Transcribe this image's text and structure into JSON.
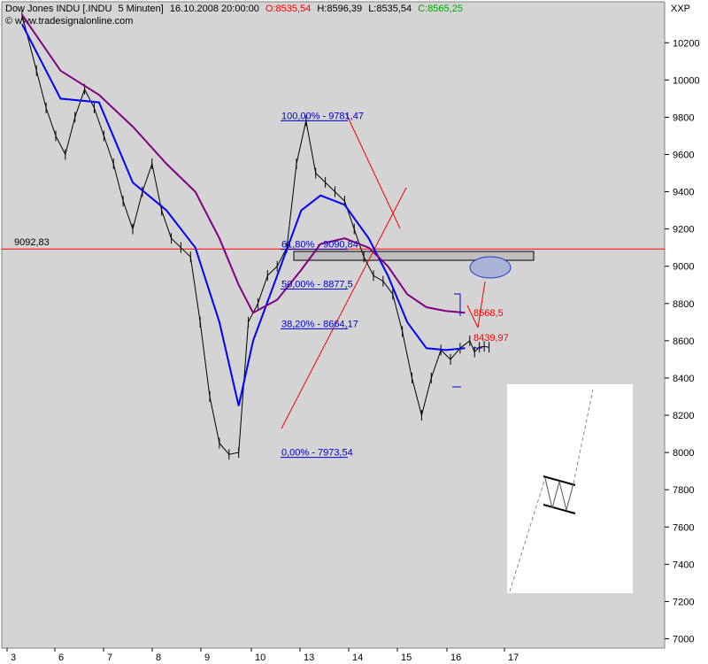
{
  "header": {
    "symbol": "Dow Jones INDU [.INDU",
    "interval": "5 Minuten]",
    "datetime": "16.10.2008 20:00:00",
    "open": "O:8535,54",
    "high": "H:8596,39",
    "low": "L:8535,54",
    "close": "C:8565,25",
    "website": "© www.tradesignalonline.com",
    "instrument_code": "XXP"
  },
  "colors": {
    "plot_bg": "#d4d4d4",
    "price": "#000000",
    "ma_fast": "#0000ff",
    "ma_slow": "#800080",
    "open_color": "#ff0000",
    "close_color": "#00aa00",
    "fib_text": "#0000cc",
    "red_line": "#ff0000"
  },
  "chart_data": {
    "type": "line",
    "title": "Dow Jones INDU [.INDU 5 Minuten] 16.10.2008 20:00:00",
    "ylim": [
      6950,
      10420
    ],
    "y_ticks": [
      7000,
      7200,
      7400,
      7600,
      7800,
      8000,
      8200,
      8400,
      8600,
      8800,
      9000,
      9200,
      9400,
      9600,
      9800,
      10000,
      10200
    ],
    "x_tick_labels": [
      "3",
      "6",
      "7",
      "8",
      "9",
      "10",
      "13",
      "14",
      "15",
      "16",
      "17"
    ],
    "grid": false,
    "series": [
      {
        "role": "price",
        "x": [
          0.2,
          0.5,
          0.7,
          0.9,
          1.1,
          1.3,
          1.5,
          1.7,
          1.9,
          2.1,
          2.3,
          2.5,
          2.7,
          2.9,
          3.1,
          3.3,
          3.5,
          3.7,
          3.9,
          4.1,
          4.3,
          4.5,
          4.7,
          4.9,
          5.1,
          5.3,
          5.5,
          5.7,
          5.9,
          6.1,
          6.3,
          6.5,
          6.7,
          6.9,
          7.1,
          7.3,
          7.5,
          7.7,
          7.9,
          8.1,
          8.3,
          8.5,
          8.7,
          8.9,
          9.1,
          9.3,
          9.5,
          9.6,
          9.7,
          9.8,
          9.9
        ],
        "values": [
          10350,
          10050,
          9850,
          9700,
          9600,
          9800,
          9950,
          9850,
          9700,
          9550,
          9350,
          9200,
          9400,
          9550,
          9300,
          9150,
          9100,
          9050,
          8700,
          8300,
          8050,
          7990,
          8000,
          8700,
          8800,
          8950,
          9000,
          9100,
          9550,
          9781,
          9500,
          9450,
          9400,
          9350,
          9200,
          9050,
          8950,
          8920,
          8850,
          8650,
          8400,
          8200,
          8400,
          8550,
          8500,
          8560,
          8600,
          8540,
          8565,
          8570,
          8565
        ]
      },
      {
        "role": "moving-average-fast",
        "x": [
          0.2,
          1.0,
          1.8,
          2.5,
          3.2,
          3.8,
          4.3,
          4.7,
          5.0,
          5.5,
          6.0,
          6.4,
          6.9,
          7.4,
          7.8,
          8.2,
          8.6,
          9.0,
          9.4
        ],
        "values": [
          10300,
          9900,
          9880,
          9450,
          9300,
          9100,
          8700,
          8250,
          8600,
          8950,
          9300,
          9380,
          9330,
          9150,
          8950,
          8700,
          8560,
          8550,
          8560
        ]
      },
      {
        "role": "moving-average-slow",
        "x": [
          0.2,
          1.0,
          1.8,
          2.5,
          3.2,
          3.8,
          4.3,
          4.7,
          5.0,
          5.5,
          6.0,
          6.4,
          6.9,
          7.4,
          7.8,
          8.2,
          8.6,
          9.0,
          9.4
        ],
        "values": [
          10350,
          10050,
          9920,
          9750,
          9550,
          9400,
          9150,
          8900,
          8750,
          8820,
          8980,
          9120,
          9150,
          9100,
          9000,
          8850,
          8780,
          8760,
          8750
        ]
      }
    ],
    "horizontal_line": {
      "value": 9092.83,
      "label": "9092,83"
    },
    "fibonacci_levels": [
      {
        "label": "100,00% - 9781,47",
        "value": 9781.47
      },
      {
        "label": "61,80% - 9090,84",
        "value": 9090.84
      },
      {
        "label": "50,00% - 8877,5",
        "value": 8877.5
      },
      {
        "label": "38,20% - 8664,17",
        "value": 8664.17
      },
      {
        "label": "0,00% - 7973,54",
        "value": 7973.54
      }
    ],
    "annotations": [
      {
        "label": "8568,5",
        "value": 8568.5
      },
      {
        "label": "8439,97",
        "value": 8439.97
      }
    ]
  }
}
